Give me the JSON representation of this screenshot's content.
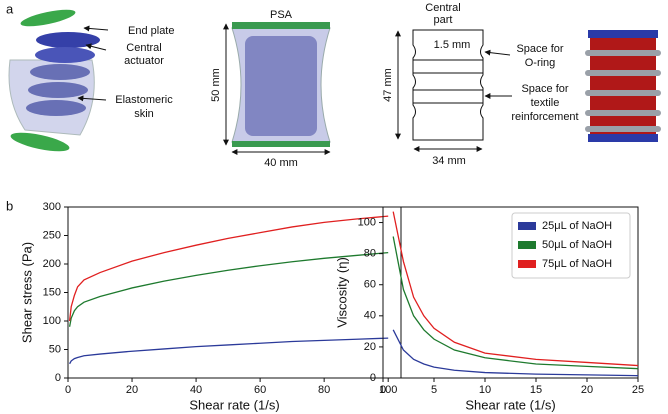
{
  "panel_a": {
    "letter": "a",
    "end_plate": "End plate",
    "central_actuator": [
      "Central",
      "actuator"
    ],
    "elastomeric_skin": [
      "Elastomeric",
      "skin"
    ],
    "psa": "PSA",
    "psa_height": "50 mm",
    "psa_width": "40 mm",
    "central_part": [
      "Central",
      "part"
    ],
    "gap": "1.5 mm",
    "part_height": "47 mm",
    "part_width": "34 mm",
    "o_ring": [
      "Space for",
      "O-ring"
    ],
    "textile": [
      "Space for",
      "textile",
      "reinforcement"
    ]
  },
  "panel_b": {
    "letter": "b"
  },
  "chart_data": [
    {
      "type": "line",
      "xlabel": "Shear rate (1/s)",
      "ylabel": "Shear stress (Pa)",
      "x": [
        0.5,
        1,
        2,
        3,
        5,
        10,
        20,
        30,
        40,
        50,
        60,
        70,
        80,
        90,
        100
      ],
      "series": [
        {
          "name": null,
          "color": "#2b3a9a",
          "values": [
            25,
            30,
            34,
            36,
            39,
            42,
            47,
            51,
            55,
            58,
            61,
            64,
            66,
            68,
            70
          ]
        },
        {
          "name": null,
          "color": "#1e7a2e",
          "values": [
            90,
            105,
            118,
            125,
            133,
            143,
            158,
            170,
            180,
            189,
            197,
            204,
            210,
            215,
            220
          ]
        },
        {
          "name": null,
          "color": "#e02020",
          "values": [
            100,
            125,
            145,
            160,
            172,
            185,
            205,
            220,
            233,
            245,
            255,
            265,
            273,
            279,
            284
          ]
        }
      ],
      "xlim": [
        0,
        104
      ],
      "ylim": [
        0,
        300
      ],
      "xticks": [
        0,
        20,
        40,
        60,
        80,
        100
      ],
      "yticks": [
        0,
        50,
        100,
        150,
        200,
        250,
        300
      ]
    },
    {
      "type": "line",
      "xlabel": "Shear rate (1/s)",
      "ylabel": "Viscosity (η)",
      "x": [
        1,
        2,
        3,
        4,
        5,
        7,
        10,
        15,
        20,
        25
      ],
      "series": [
        {
          "name": "25μL of NaOH",
          "color": "#2b3a9a",
          "values": [
            31,
            18,
            12,
            9,
            7,
            5,
            3.5,
            2.5,
            2,
            1.5
          ]
        },
        {
          "name": "50μL of NaOH",
          "color": "#1e7a2e",
          "values": [
            91,
            57,
            40,
            31,
            25,
            18,
            13,
            9,
            7.5,
            6
          ]
        },
        {
          "name": "75μL of NaOH",
          "color": "#e02020",
          "values": [
            107,
            75,
            52,
            40,
            32,
            23,
            16,
            12,
            10,
            8
          ]
        }
      ],
      "xlim": [
        0,
        25
      ],
      "ylim": [
        0,
        110
      ],
      "xticks": [
        0,
        5,
        10,
        15,
        20,
        25
      ],
      "yticks": [
        0,
        20,
        40,
        60,
        80,
        100
      ],
      "legend": "upper right"
    }
  ]
}
